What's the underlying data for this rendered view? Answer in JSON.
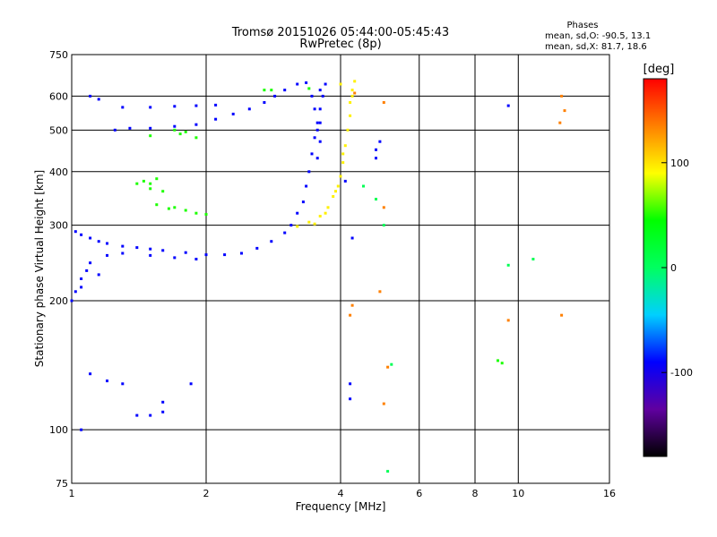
{
  "chart_data": {
    "type": "scatter",
    "title": "Tromsø 20151026 05:44:00-05:45:43",
    "subtitle": "RwPretec (8p)",
    "xlabel": "Frequency [MHz]",
    "ylabel": "Stationary phase Virtual Height [km]",
    "x_scale": "log2",
    "y_scale": "log",
    "xlim": [
      1,
      16
    ],
    "ylim": [
      75,
      750
    ],
    "x_ticks": [
      1,
      2,
      4,
      6,
      8,
      10,
      16
    ],
    "y_ticks": [
      75,
      100,
      200,
      300,
      400,
      500,
      600,
      750
    ],
    "grid": true,
    "phase_box": {
      "title": "Phases",
      "line_o": "mean, sd,O: -90.5, 13.1",
      "line_x": "mean, sd,X: 81.7, 18.6"
    },
    "colorbar": {
      "label": "[deg]",
      "range": [
        -180,
        180
      ],
      "ticks": [
        100,
        0,
        -100
      ],
      "tick_labels": [
        "100",
        "0",
        "-100"
      ],
      "colors": [
        "#000000",
        "#6000a0",
        "#0000ff",
        "#00d0ff",
        "#00ff60",
        "#00ff00",
        "#ffff00",
        "#ff8000",
        "#ff0000"
      ]
    },
    "series": [
      {
        "mode": "O",
        "phase": -90,
        "points": [
          [
            1.02,
            290
          ],
          [
            1.05,
            285
          ],
          [
            1.1,
            280
          ],
          [
            1.15,
            275
          ],
          [
            1.2,
            272
          ],
          [
            1.3,
            268
          ],
          [
            1.4,
            266
          ],
          [
            1.5,
            264
          ],
          [
            1.6,
            262
          ],
          [
            1.8,
            259
          ],
          [
            2.0,
            256
          ],
          [
            2.2,
            256
          ],
          [
            2.4,
            258
          ],
          [
            2.6,
            265
          ],
          [
            2.8,
            275
          ],
          [
            3.0,
            288
          ],
          [
            3.1,
            300
          ],
          [
            3.2,
            320
          ],
          [
            3.3,
            340
          ],
          [
            3.35,
            370
          ],
          [
            3.4,
            400
          ],
          [
            3.45,
            440
          ],
          [
            3.5,
            480
          ],
          [
            3.55,
            520
          ],
          [
            3.6,
            560
          ],
          [
            3.65,
            600
          ],
          [
            3.7,
            640
          ],
          [
            1.0,
            200
          ],
          [
            1.02,
            210
          ],
          [
            1.05,
            225
          ],
          [
            1.08,
            235
          ],
          [
            1.1,
            245
          ],
          [
            1.2,
            255
          ],
          [
            1.3,
            258
          ],
          [
            1.5,
            255
          ],
          [
            1.7,
            252
          ],
          [
            1.9,
            250
          ],
          [
            1.05,
            215
          ],
          [
            1.15,
            230
          ],
          [
            1.25,
            500
          ],
          [
            1.35,
            505
          ],
          [
            1.5,
            505
          ],
          [
            1.7,
            510
          ],
          [
            1.9,
            515
          ],
          [
            2.1,
            530
          ],
          [
            2.3,
            545
          ],
          [
            2.5,
            560
          ],
          [
            2.7,
            580
          ],
          [
            2.85,
            600
          ],
          [
            3.0,
            620
          ],
          [
            3.2,
            640
          ],
          [
            3.35,
            645
          ],
          [
            1.3,
            565
          ],
          [
            1.5,
            565
          ],
          [
            1.7,
            568
          ],
          [
            1.9,
            570
          ],
          [
            2.1,
            572
          ],
          [
            1.1,
            600
          ],
          [
            1.15,
            590
          ],
          [
            3.55,
            430
          ],
          [
            3.55,
            500
          ],
          [
            3.5,
            560
          ],
          [
            3.6,
            470
          ],
          [
            3.6,
            520
          ],
          [
            3.45,
            600
          ],
          [
            3.6,
            620
          ],
          [
            4.8,
            450
          ],
          [
            4.9,
            470
          ],
          [
            4.8,
            430
          ],
          [
            4.1,
            380
          ],
          [
            4.25,
            280
          ],
          [
            1.4,
            108
          ],
          [
            1.5,
            108
          ],
          [
            1.6,
            110
          ],
          [
            1.3,
            128
          ],
          [
            1.6,
            116
          ],
          [
            1.85,
            128
          ],
          [
            1.05,
            100
          ],
          [
            1.2,
            130
          ],
          [
            1.1,
            135
          ],
          [
            4.2,
            128
          ],
          [
            4.2,
            118
          ],
          [
            9.5,
            570
          ]
        ]
      },
      {
        "mode": "X",
        "phase": 95,
        "points": [
          [
            3.2,
            298
          ],
          [
            3.4,
            305
          ],
          [
            3.6,
            315
          ],
          [
            3.75,
            330
          ],
          [
            3.85,
            350
          ],
          [
            3.95,
            370
          ],
          [
            4.0,
            390
          ],
          [
            4.05,
            420
          ],
          [
            4.1,
            460
          ],
          [
            4.15,
            500
          ],
          [
            4.2,
            540
          ],
          [
            4.2,
            580
          ],
          [
            4.25,
            620
          ],
          [
            4.3,
            650
          ],
          [
            3.5,
            302
          ],
          [
            3.7,
            320
          ],
          [
            3.9,
            360
          ],
          [
            4.05,
            440
          ],
          [
            4.25,
            600
          ],
          [
            4.0,
            640
          ]
        ]
      },
      {
        "mode": "X",
        "phase": 50,
        "points": [
          [
            1.4,
            375
          ],
          [
            1.45,
            380
          ],
          [
            1.5,
            375
          ],
          [
            1.55,
            385
          ],
          [
            1.5,
            365
          ],
          [
            1.6,
            360
          ],
          [
            1.7,
            330
          ],
          [
            1.8,
            325
          ],
          [
            1.9,
            320
          ],
          [
            2.0,
            318
          ],
          [
            1.55,
            335
          ],
          [
            1.65,
            328
          ],
          [
            1.75,
            490
          ],
          [
            1.8,
            495
          ],
          [
            1.9,
            480
          ],
          [
            1.7,
            500
          ],
          [
            2.7,
            620
          ],
          [
            2.8,
            620
          ],
          [
            3.4,
            625
          ],
          [
            1.5,
            485
          ],
          [
            9.0,
            145
          ],
          [
            9.2,
            143
          ]
        ]
      },
      {
        "mode": "X",
        "phase": 5,
        "points": [
          [
            4.5,
            370
          ],
          [
            4.8,
            345
          ],
          [
            5.0,
            300
          ],
          [
            5.2,
            142
          ],
          [
            9.5,
            242
          ],
          [
            10.8,
            250
          ],
          [
            5.1,
            80
          ]
        ]
      },
      {
        "mode": "X",
        "phase": 135,
        "points": [
          [
            5.0,
            580
          ],
          [
            12.5,
            600
          ],
          [
            12.7,
            555
          ],
          [
            12.4,
            520
          ],
          [
            5.0,
            330
          ],
          [
            4.3,
            610
          ],
          [
            5.0,
            115
          ],
          [
            5.1,
            140
          ],
          [
            9.5,
            180
          ],
          [
            12.5,
            185
          ],
          [
            4.9,
            210
          ],
          [
            4.25,
            195
          ],
          [
            4.2,
            185
          ]
        ]
      }
    ]
  }
}
